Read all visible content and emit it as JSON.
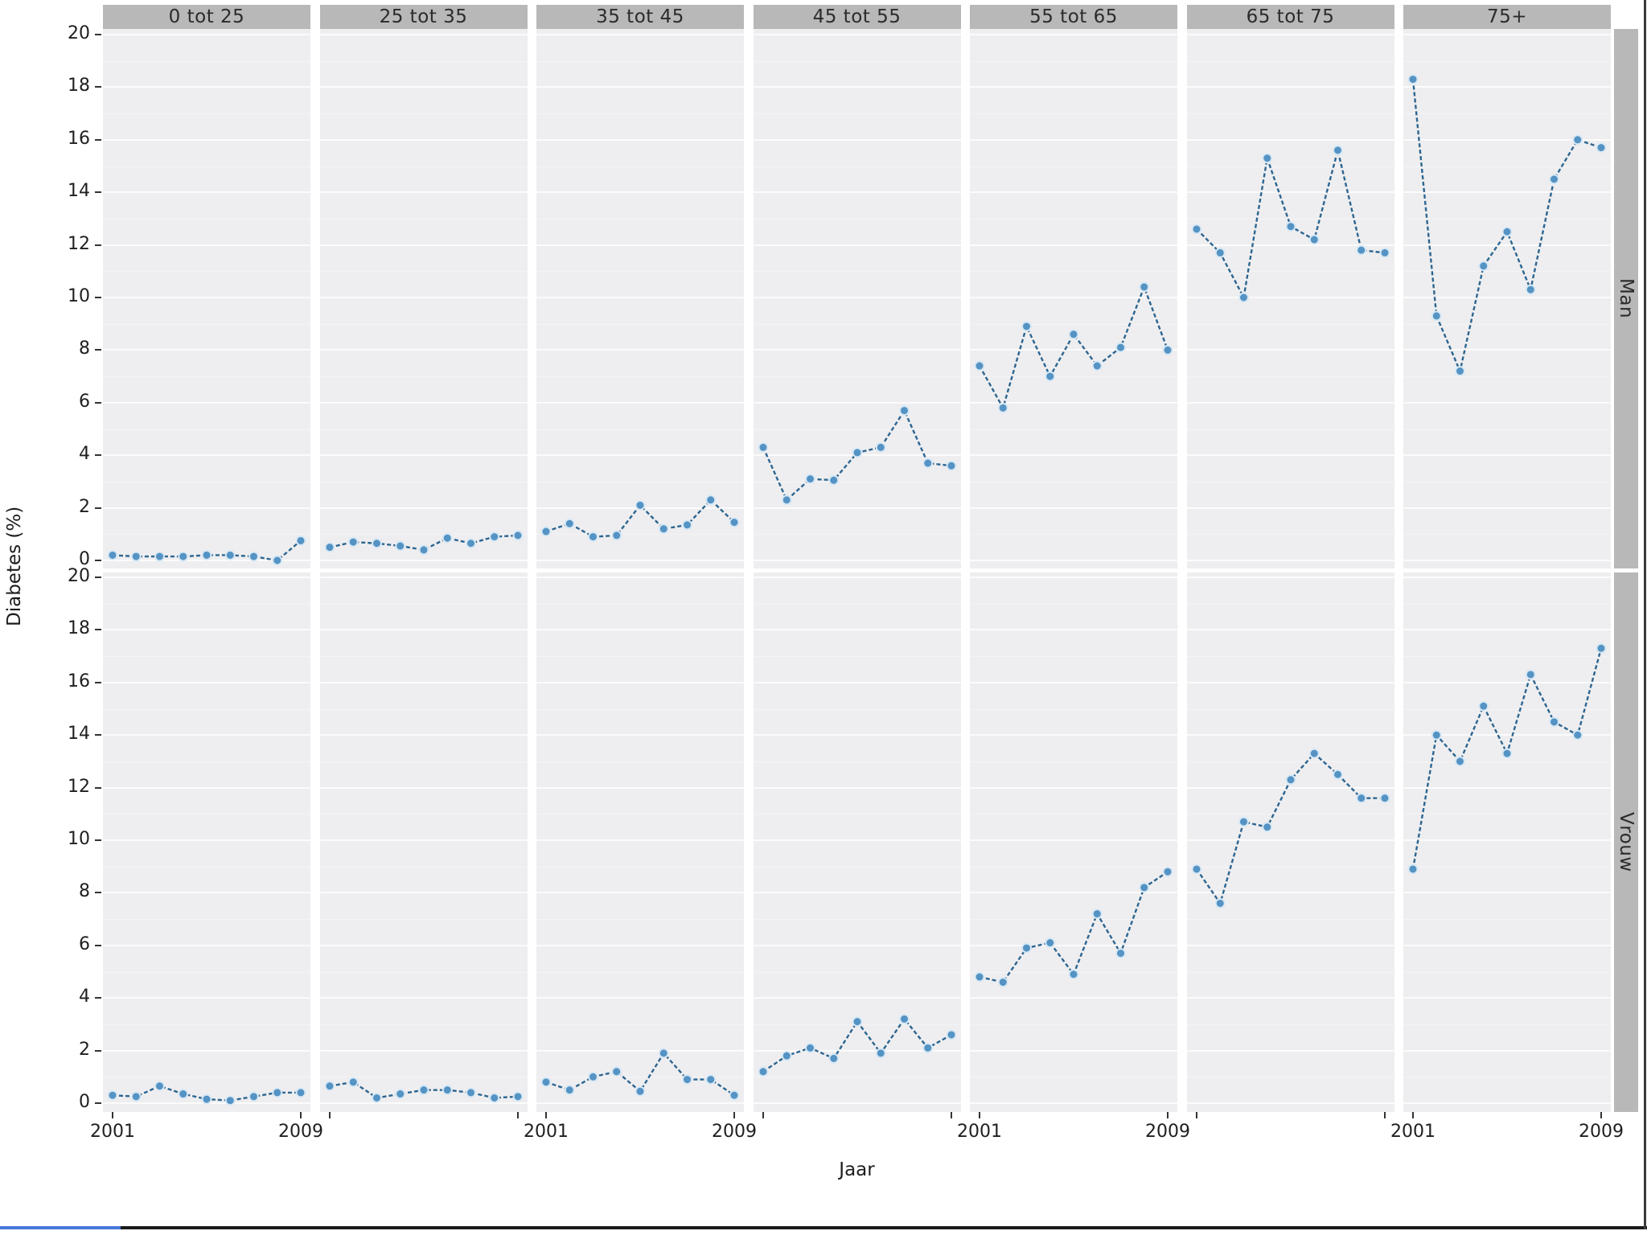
{
  "figure": {
    "x_axis_title": "Jaar",
    "y_axis_title": "Diabetes (%)"
  },
  "chart_data": {
    "type": "line",
    "title": "",
    "xlabel": "Jaar",
    "ylabel": "Diabetes (%)",
    "x": [
      2001,
      2002,
      2003,
      2004,
      2005,
      2006,
      2007,
      2008,
      2009
    ],
    "x_tick_years_labeled": [
      2001,
      2009
    ],
    "ylim": [
      0,
      20
    ],
    "y_ticks": [
      0,
      2,
      4,
      6,
      8,
      10,
      12,
      14,
      16,
      18,
      20
    ],
    "grid": "major horizontal white on grey panel",
    "legend_position": "none",
    "facet_columns": [
      "0 tot 25",
      "25 tot 35",
      "35 tot 45",
      "45 tot 55",
      "55 tot 65",
      "65 tot 75",
      "75+"
    ],
    "facet_rows": [
      "Man",
      "Vrouw"
    ],
    "series": [
      {
        "row": "Man",
        "column": "0 tot 25",
        "values": [
          0.2,
          0.15,
          0.15,
          0.15,
          0.2,
          0.2,
          0.15,
          0.0,
          0.75
        ]
      },
      {
        "row": "Man",
        "column": "25 tot 35",
        "values": [
          0.5,
          0.7,
          0.65,
          0.55,
          0.4,
          0.85,
          0.65,
          0.9,
          0.95
        ]
      },
      {
        "row": "Man",
        "column": "35 tot 45",
        "values": [
          1.1,
          1.4,
          0.9,
          0.95,
          2.1,
          1.2,
          1.35,
          2.3,
          1.45
        ]
      },
      {
        "row": "Man",
        "column": "45 tot 55",
        "values": [
          4.3,
          2.3,
          3.1,
          3.05,
          4.1,
          4.3,
          5.7,
          3.7,
          3.6
        ]
      },
      {
        "row": "Man",
        "column": "55 tot 65",
        "values": [
          7.4,
          5.8,
          8.9,
          7.0,
          8.6,
          7.4,
          8.1,
          10.4,
          8.0
        ]
      },
      {
        "row": "Man",
        "column": "65 tot 75",
        "values": [
          12.6,
          11.7,
          10.0,
          15.3,
          12.7,
          12.2,
          15.6,
          11.8,
          11.7
        ]
      },
      {
        "row": "Man",
        "column": "75+",
        "values": [
          18.3,
          9.3,
          7.2,
          11.2,
          12.5,
          10.3,
          14.5,
          16.0,
          15.7
        ]
      },
      {
        "row": "Vrouw",
        "column": "0 tot 25",
        "values": [
          0.3,
          0.25,
          0.65,
          0.35,
          0.15,
          0.1,
          0.25,
          0.4,
          0.4
        ]
      },
      {
        "row": "Vrouw",
        "column": "25 tot 35",
        "values": [
          0.65,
          0.8,
          0.2,
          0.35,
          0.5,
          0.5,
          0.4,
          0.2,
          0.25
        ]
      },
      {
        "row": "Vrouw",
        "column": "35 tot 45",
        "values": [
          0.8,
          0.5,
          1.0,
          1.2,
          0.45,
          1.9,
          0.9,
          0.9,
          0.3
        ]
      },
      {
        "row": "Vrouw",
        "column": "45 tot 55",
        "values": [
          1.2,
          1.8,
          2.1,
          1.7,
          3.1,
          1.9,
          3.2,
          2.1,
          2.6
        ]
      },
      {
        "row": "Vrouw",
        "column": "55 tot 65",
        "values": [
          4.8,
          4.6,
          5.9,
          6.1,
          4.9,
          7.2,
          5.7,
          8.2,
          8.8
        ]
      },
      {
        "row": "Vrouw",
        "column": "65 tot 75",
        "values": [
          8.9,
          7.6,
          10.7,
          10.5,
          12.3,
          13.3,
          12.5,
          11.6,
          11.6
        ]
      },
      {
        "row": "Vrouw",
        "column": "75+",
        "values": [
          8.9,
          14.0,
          13.0,
          15.1,
          13.3,
          16.3,
          14.5,
          14.0,
          17.3
        ]
      }
    ],
    "colors": {
      "line": "#2d6590",
      "point": "#5493c4",
      "point_halo": "#d8e8f4",
      "panel_bg": "#eeeef0",
      "strip_bg": "#b8b8b8",
      "gridline": "#fbfbfc",
      "accent_bottom_left": "#4678d8",
      "frame": "#1a1a1a"
    }
  }
}
